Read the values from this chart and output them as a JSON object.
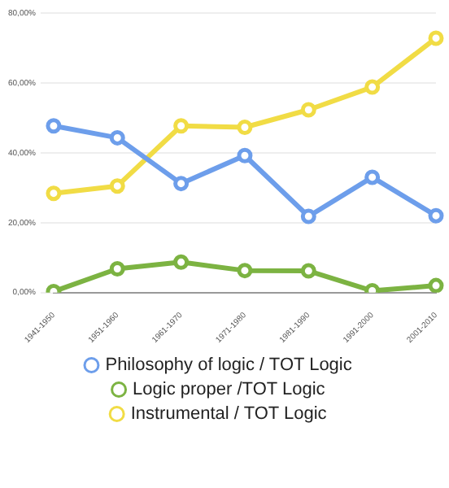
{
  "chart_data": {
    "type": "line",
    "categories": [
      "1941-1950",
      "1951-1960",
      "1961-1970",
      "1971-1980",
      "1981-1990",
      "1991-2000",
      "2001-2010"
    ],
    "series": [
      {
        "name": "Philosophy of logic / TOT Logic",
        "color": "#6d9eeb",
        "values": [
          47.7,
          44.3,
          31.2,
          39.2,
          21.8,
          33,
          22
        ]
      },
      {
        "name": "Logic proper /TOT Logic",
        "color": "#7cb342",
        "values": [
          0.3,
          6.8,
          8.7,
          6.3,
          6.2,
          0.5,
          2
        ]
      },
      {
        "name": "Instrumental / TOT Logic",
        "color": "#f1dc45",
        "values": [
          28.4,
          30.5,
          47.7,
          47.3,
          52.3,
          58.8,
          72.8
        ]
      }
    ],
    "ylim": [
      0,
      80
    ],
    "yticks": [
      {
        "value": 0,
        "label": "0,00%"
      },
      {
        "value": 20,
        "label": "20,00%"
      },
      {
        "value": 40,
        "label": "40,00%"
      },
      {
        "value": 60,
        "label": "60,00%"
      },
      {
        "value": 80,
        "label": "80,00%"
      }
    ],
    "grid": "y",
    "legend": "bottom",
    "marker": "circle",
    "line_style": "solid"
  }
}
